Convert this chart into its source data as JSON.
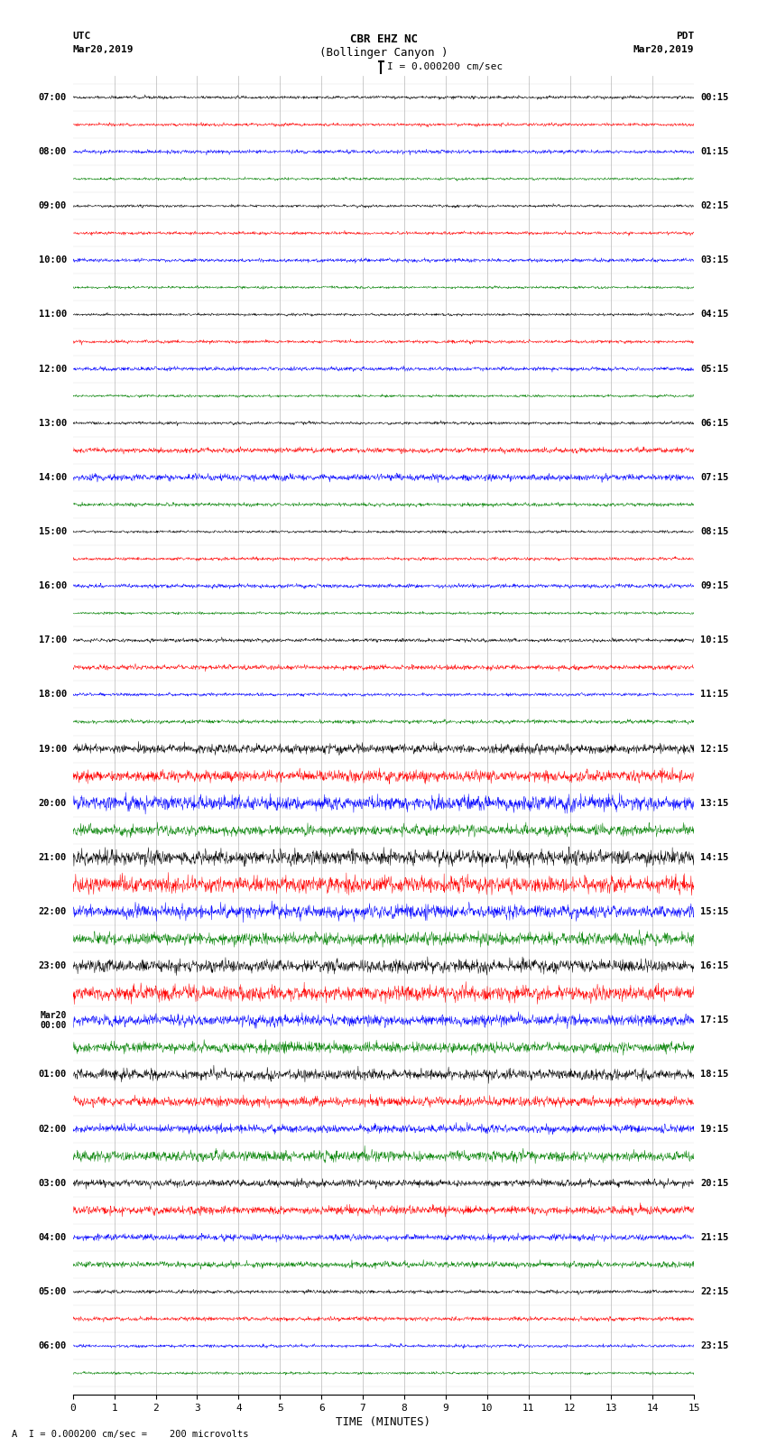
{
  "title_line1": "CBR EHZ NC",
  "title_line2": "(Bollinger Canyon )",
  "scale_label": "I = 0.000200 cm/sec",
  "left_header_line1": "UTC",
  "left_header_line2": "Mar20,2019",
  "right_header_line1": "PDT",
  "right_header_line2": "Mar20,2019",
  "bottom_label": "A  I = 0.000200 cm/sec =    200 microvolts",
  "xlabel": "TIME (MINUTES)",
  "num_rows": 48,
  "minutes_per_row": 15,
  "colors_cycle": [
    "black",
    "red",
    "blue",
    "green"
  ],
  "fig_width": 8.5,
  "fig_height": 16.13,
  "dpi": 100,
  "noise_amplitude_varied": [
    0.06,
    0.06,
    0.07,
    0.05,
    0.05,
    0.06,
    0.07,
    0.05,
    0.05,
    0.06,
    0.08,
    0.05,
    0.06,
    0.1,
    0.13,
    0.07,
    0.05,
    0.06,
    0.08,
    0.05,
    0.07,
    0.09,
    0.06,
    0.07,
    0.18,
    0.22,
    0.28,
    0.2,
    0.28,
    0.32,
    0.26,
    0.24,
    0.24,
    0.28,
    0.22,
    0.2,
    0.2,
    0.18,
    0.16,
    0.2,
    0.14,
    0.16,
    0.12,
    0.12,
    0.07,
    0.08,
    0.06,
    0.05
  ],
  "utc_labels": [
    "07:00",
    "08:00",
    "09:00",
    "10:00",
    "11:00",
    "12:00",
    "13:00",
    "14:00",
    "15:00",
    "16:00",
    "17:00",
    "18:00",
    "19:00",
    "20:00",
    "21:00",
    "22:00",
    "23:00",
    "Mar20\n00:00",
    "01:00",
    "02:00",
    "03:00",
    "04:00",
    "05:00",
    "06:00"
  ],
  "pdt_labels": [
    "00:15",
    "01:15",
    "02:15",
    "03:15",
    "04:15",
    "05:15",
    "06:15",
    "07:15",
    "08:15",
    "09:15",
    "10:15",
    "11:15",
    "12:15",
    "13:15",
    "14:15",
    "15:15",
    "16:15",
    "17:15",
    "18:15",
    "19:15",
    "20:15",
    "21:15",
    "22:15",
    "23:15"
  ],
  "grid_color": "#888888",
  "bg_color": "white",
  "x_ticks": [
    0,
    1,
    2,
    3,
    4,
    5,
    6,
    7,
    8,
    9,
    10,
    11,
    12,
    13,
    14,
    15
  ]
}
